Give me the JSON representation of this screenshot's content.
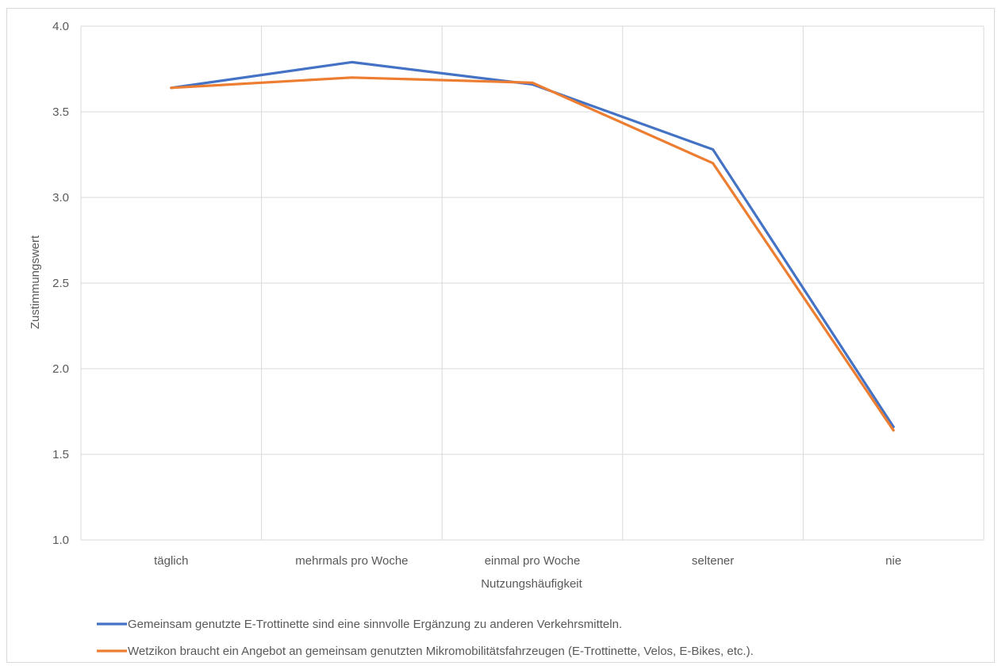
{
  "chart_data": {
    "type": "line",
    "title": "",
    "xlabel": "Nutzungshäufigkeit",
    "ylabel": "Zustimmungswert",
    "categories": [
      "täglich",
      "mehrmals pro Woche",
      "einmal pro Woche",
      "seltener",
      "nie"
    ],
    "ylim": [
      1.0,
      4.0
    ],
    "yticks": [
      "1.0",
      "1.5",
      "2.0",
      "2.5",
      "3.0",
      "3.5",
      "4.0"
    ],
    "grid": true,
    "legend_position": "bottom",
    "series": [
      {
        "name": "Gemeinsam genutzte E-Trottinette sind eine sinnvolle Ergänzung zu anderen Verkehrsmitteln.",
        "color": "#4472c4",
        "values": [
          3.64,
          3.79,
          3.66,
          3.28,
          1.66
        ]
      },
      {
        "name": "Wetzikon braucht ein Angebot an gemeinsam genutzten Mikromobilitätsfahrzeugen (E-Trottinette, Velos, E-Bikes, etc.).",
        "color": "#ed7d31",
        "values": [
          3.64,
          3.7,
          3.67,
          3.2,
          1.64
        ]
      }
    ]
  }
}
